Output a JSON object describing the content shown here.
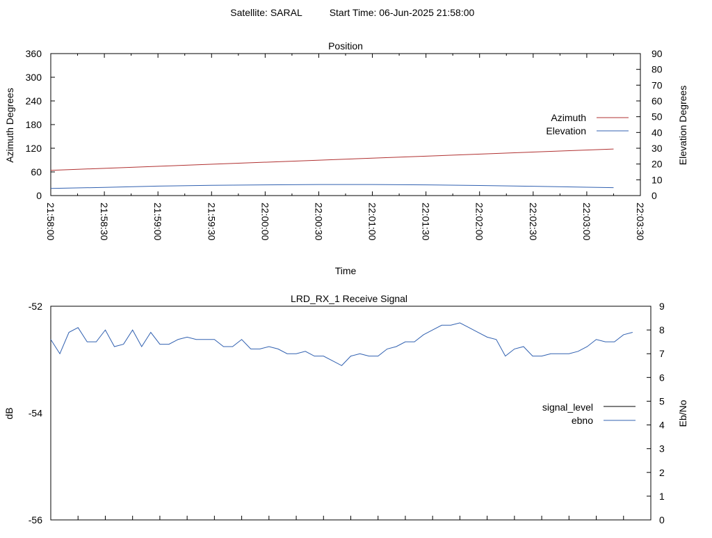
{
  "header": {
    "satellite": "Satellite: SARAL",
    "start_time": "Start Time: 06-Jun-2025 21:58:00"
  },
  "colors": {
    "azimuth": "#b03030",
    "elevation": "#3060b0",
    "signal_level": "#00aa00",
    "ebno": "#3060b0",
    "axis": "#000000"
  },
  "chart_data": [
    {
      "type": "line",
      "title": "Position",
      "xlabel": "Time",
      "ylabel_left": "Azimuth Degrees",
      "ylabel_right": "Elevation Degrees",
      "x_ticks": [
        "21:58:00",
        "21:58:30",
        "21:59:00",
        "21:59:30",
        "22:00:00",
        "22:00:30",
        "22:01:00",
        "22:01:30",
        "22:02:00",
        "22:02:30",
        "22:03:00",
        "22:03:30"
      ],
      "x_range": [
        "21:58:00",
        "22:03:30"
      ],
      "y_left_ticks": [
        0,
        60,
        120,
        180,
        240,
        300,
        360
      ],
      "y_left_range": [
        0,
        360
      ],
      "y_right_ticks": [
        0,
        10,
        20,
        30,
        40,
        50,
        60,
        70,
        80,
        90
      ],
      "y_right_range": [
        0,
        90
      ],
      "legend_position": "right",
      "series": [
        {
          "name": "Azimuth",
          "axis": "left",
          "x": [
            "21:58:00",
            "22:03:15"
          ],
          "y": [
            64,
            118
          ]
        },
        {
          "name": "Elevation",
          "axis": "right",
          "x": [
            "21:58:00",
            "21:58:30",
            "21:59:00",
            "21:59:30",
            "22:00:00",
            "22:00:30",
            "22:01:00",
            "22:01:30",
            "22:02:00",
            "22:02:30",
            "22:03:00",
            "22:03:15"
          ],
          "y": [
            4.5,
            5.2,
            6.0,
            6.5,
            6.8,
            7.0,
            7.0,
            6.8,
            6.4,
            5.9,
            5.3,
            5.0
          ]
        }
      ]
    },
    {
      "type": "line",
      "title": "LRD_RX_1 Receive Signal",
      "ylabel_left": "dB",
      "ylabel_right": "Eb/No",
      "x_range": [
        "21:58:00",
        "22:03:30"
      ],
      "y_left_ticks": [
        -52,
        -54,
        -56
      ],
      "y_left_range": [
        -56,
        -52
      ],
      "y_right_ticks": [
        0,
        1,
        2,
        3,
        4,
        5,
        6,
        7,
        8,
        9
      ],
      "y_right_range": [
        0,
        9
      ],
      "legend_position": "right",
      "series": [
        {
          "name": "signal_level",
          "axis": "left",
          "y": []
        },
        {
          "name": "ebno",
          "axis": "right",
          "x": [
            "21:58:00",
            "21:58:05",
            "21:58:10",
            "21:58:15",
            "21:58:20",
            "21:58:25",
            "21:58:30",
            "21:58:35",
            "21:58:40",
            "21:58:45",
            "21:58:50",
            "21:58:55",
            "21:59:00",
            "21:59:05",
            "21:59:10",
            "21:59:15",
            "21:59:20",
            "21:59:25",
            "21:59:30",
            "21:59:35",
            "21:59:40",
            "21:59:45",
            "21:59:50",
            "21:59:55",
            "22:00:00",
            "22:00:05",
            "22:00:10",
            "22:00:15",
            "22:00:20",
            "22:00:25",
            "22:00:30",
            "22:00:35",
            "22:00:40",
            "22:00:45",
            "22:00:50",
            "22:00:55",
            "22:01:00",
            "22:01:05",
            "22:01:10",
            "22:01:15",
            "22:01:20",
            "22:01:25",
            "22:01:30",
            "22:01:35",
            "22:01:40",
            "22:01:45",
            "22:01:50",
            "22:01:55",
            "22:02:00",
            "22:02:05",
            "22:02:10",
            "22:02:15",
            "22:02:20",
            "22:02:25",
            "22:02:30",
            "22:02:35",
            "22:02:40",
            "22:02:45",
            "22:02:50",
            "22:02:55",
            "22:03:00",
            "22:03:05",
            "22:03:10",
            "22:03:15",
            "22:03:20"
          ],
          "y": [
            7.6,
            7.0,
            7.9,
            8.1,
            7.5,
            7.5,
            8.0,
            7.3,
            7.4,
            8.0,
            7.3,
            7.9,
            7.4,
            7.4,
            7.6,
            7.7,
            7.6,
            7.6,
            7.6,
            7.3,
            7.3,
            7.6,
            7.2,
            7.2,
            7.3,
            7.2,
            7.0,
            7.0,
            7.1,
            6.9,
            6.9,
            6.7,
            6.5,
            6.9,
            7.0,
            6.9,
            6.9,
            7.2,
            7.3,
            7.5,
            7.5,
            7.8,
            8.0,
            8.2,
            8.2,
            8.3,
            8.1,
            7.9,
            7.7,
            7.6,
            6.9,
            7.2,
            7.3,
            6.9,
            6.9,
            7.0,
            7.0,
            7.0,
            7.1,
            7.3,
            7.6,
            7.5,
            7.5,
            7.8,
            7.9
          ]
        }
      ]
    }
  ]
}
